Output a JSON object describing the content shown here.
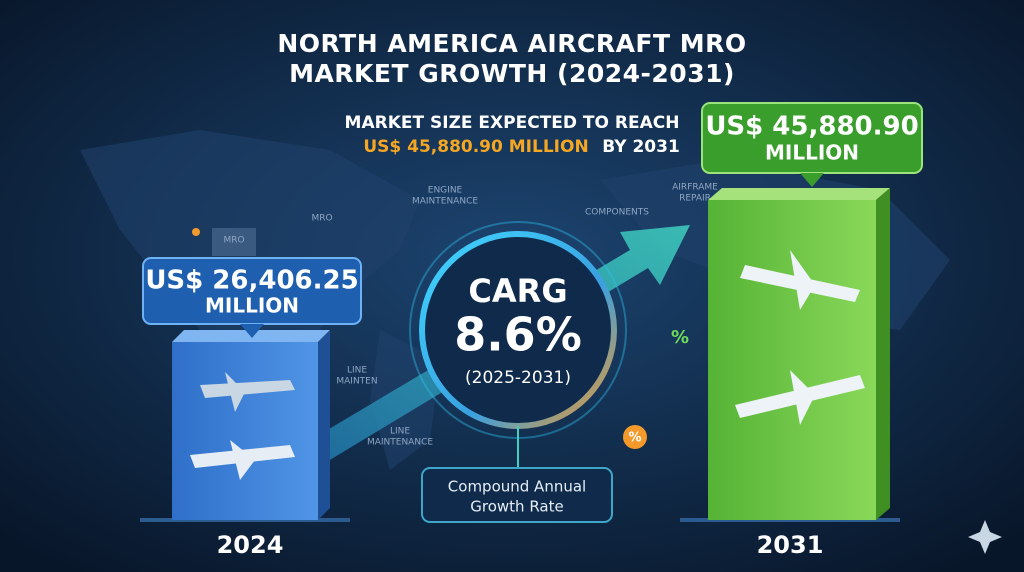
{
  "header": {
    "title_lines": [
      "NORTH AMERICA AIRCRAFT MRO",
      "MARKET GROWTH (2024-2031)"
    ],
    "subtitle_line1": "MARKET SIZE EXPECTED TO REACH",
    "subtitle_highlight": "US$ 45,880.90 MILLION",
    "subtitle_end": "BY 2031"
  },
  "callouts": [
    {
      "amount": "US$ 26,406.25",
      "unit": "MILLION",
      "year": "2024"
    },
    {
      "amount": "US$ 45,880.90",
      "unit": "MILLION",
      "year": "2031"
    }
  ],
  "cagr": {
    "label": "CARG",
    "value": "8.6%",
    "period": "(2025-2031)",
    "note_lines": [
      "Compound Annual",
      "Growth Rate"
    ]
  },
  "map_labels": [
    "MRO",
    "ENGINE",
    "MAINTENANCE",
    "COMPONENTS",
    "AIRFRAME",
    "REPAIR",
    "LINE",
    "MAINTEN",
    "LINE",
    "MAINTENANCE",
    "MRO"
  ],
  "icons": [
    "%",
    "%"
  ]
}
